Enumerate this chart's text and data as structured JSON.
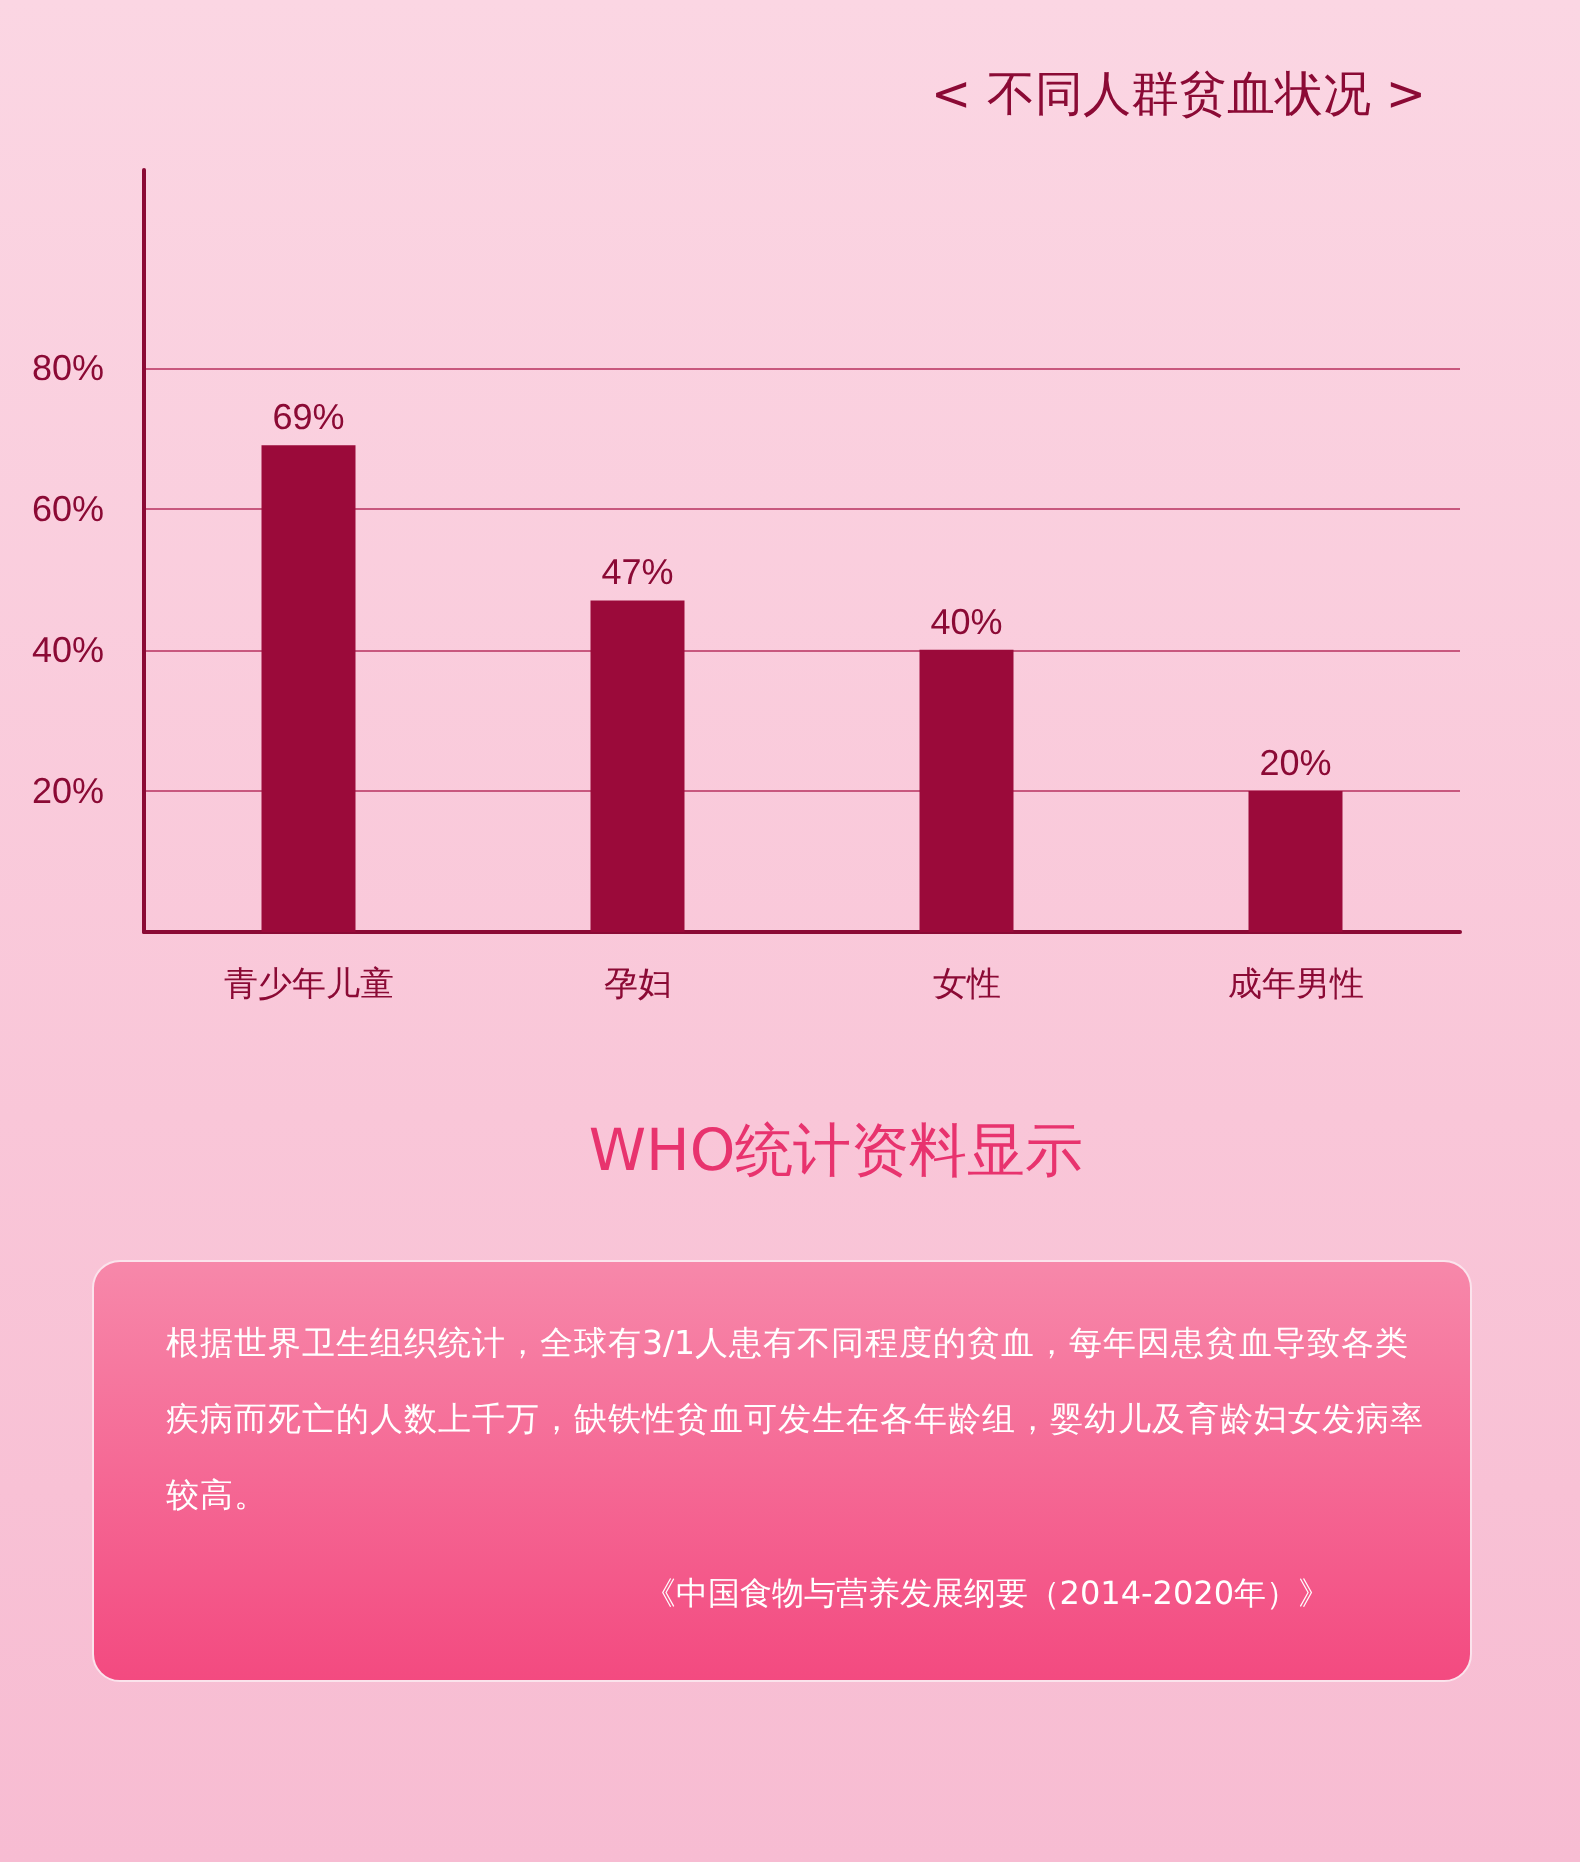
{
  "chart_data": {
    "type": "bar",
    "title": "< 不同人群贫血状况 >",
    "categories": [
      "青少年儿童",
      "孕妇",
      "女性",
      "成年男性"
    ],
    "values": [
      69,
      47,
      40,
      20
    ],
    "value_labels": [
      "69%",
      "47%",
      "40%",
      "20%"
    ],
    "color": "#9b0a3a",
    "ylim": [
      0,
      108
    ],
    "yticks": [
      {
        "value": 20,
        "label": "20%"
      },
      {
        "value": 40,
        "label": "40%"
      },
      {
        "value": 60,
        "label": "60%"
      },
      {
        "value": 80,
        "label": "80%"
      }
    ],
    "grid": "y",
    "annotations": [
      "WHO统计资料显示",
      "根据世界卫生组织统计，全球有3/1人患有不同程度的贫血，每年因患贫血导致各类疾病而死亡的人数上千万，缺铁性贫血可发生在各年龄组，婴幼儿及育龄妇女发病率较高。",
      "《中国食物与营养发展纲要（2014-2020年）》"
    ]
  }
}
